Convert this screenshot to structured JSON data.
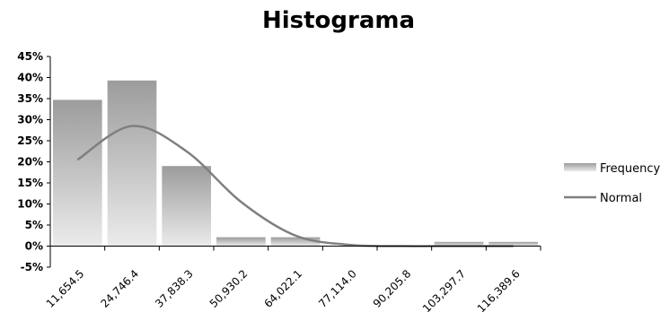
{
  "chart_data": {
    "type": "bar",
    "title": "Histograma",
    "xlabel": "",
    "ylabel": "",
    "ylim": [
      -5,
      45
    ],
    "yticks": [
      "-5%",
      "0%",
      "5%",
      "10%",
      "15%",
      "20%",
      "25%",
      "30%",
      "35%",
      "40%",
      "45%"
    ],
    "categories": [
      "11,654.5",
      "24,746.4",
      "37,838.3",
      "50,930.2",
      "64,022.1",
      "77,114.0",
      "90,205.8",
      "103,297.7",
      "116,389.6"
    ],
    "series": [
      {
        "name": "Frequency",
        "type": "bar",
        "values": [
          34.7,
          39.3,
          19.0,
          2.1,
          2.1,
          0.0,
          0.0,
          1.0,
          1.0
        ]
      },
      {
        "name": "Normal",
        "type": "line",
        "values": [
          20.5,
          28.5,
          22.5,
          10.5,
          2.5,
          0.3,
          0.0,
          0.0,
          0.0
        ]
      }
    ],
    "legend_position": "right",
    "colors": {
      "bar_top": "#9c9c9c",
      "bar_bottom": "#ebebeb",
      "line": "#7f7f7f",
      "axis": "#000000"
    }
  }
}
